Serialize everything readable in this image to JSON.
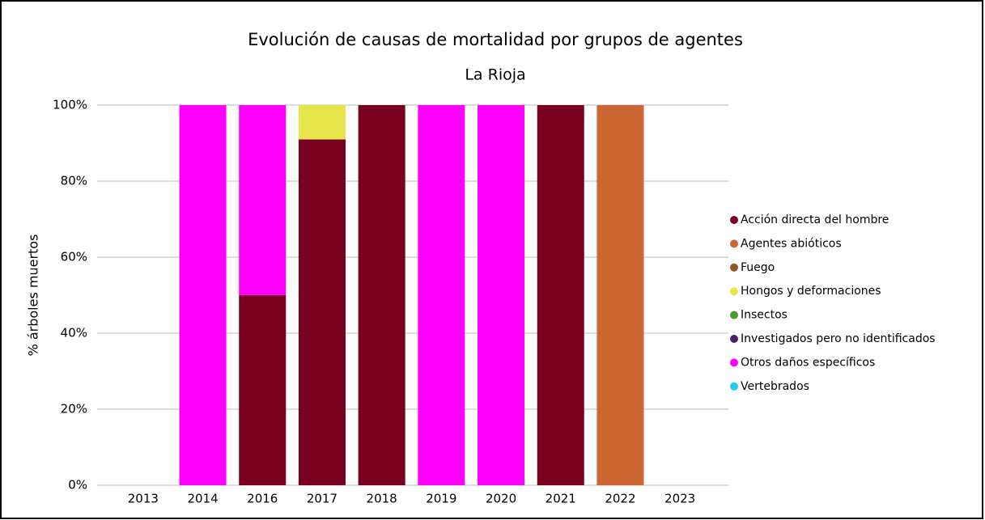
{
  "chart_data": {
    "type": "stacked_bar",
    "title": "Evolución de causas de mortalidad por grupos de agentes",
    "subtitle": "La Rioja",
    "y_label": "% árboles muertos",
    "categories": [
      "2013",
      "2014",
      "2016",
      "2017",
      "2018",
      "2019",
      "2020",
      "2021",
      "2022",
      "2023"
    ],
    "series": [
      {
        "name": "Acción directa del hombre",
        "color": "#7a0020",
        "values": [
          0,
          0,
          50,
          91,
          100,
          0,
          0,
          100,
          0,
          0
        ]
      },
      {
        "name": "Agentes abióticos",
        "color": "#cc6633",
        "values": [
          0,
          0,
          0,
          0,
          0,
          0,
          0,
          0,
          100,
          0
        ]
      },
      {
        "name": "Fuego",
        "color": "#8b5a2b",
        "values": [
          0,
          0,
          0,
          0,
          0,
          0,
          0,
          0,
          0,
          0
        ]
      },
      {
        "name": "Hongos y deformaciones",
        "color": "#e6e64c",
        "values": [
          0,
          0,
          0,
          9,
          0,
          0,
          0,
          0,
          0,
          0
        ]
      },
      {
        "name": "Insectos",
        "color": "#4c9a2a",
        "values": [
          0,
          0,
          0,
          0,
          0,
          0,
          0,
          0,
          0,
          0
        ]
      },
      {
        "name": "Investigados pero no identificados",
        "color": "#4b1e6e",
        "values": [
          0,
          0,
          0,
          0,
          0,
          0,
          0,
          0,
          0,
          0
        ]
      },
      {
        "name": "Otros daños específicos",
        "color": "#ff00ff",
        "values": [
          0,
          100,
          50,
          0,
          0,
          100,
          100,
          0,
          0,
          0
        ]
      },
      {
        "name": "Vertebrados",
        "color": "#22ccee",
        "values": [
          0,
          0,
          0,
          0,
          0,
          0,
          0,
          0,
          0,
          0
        ]
      }
    ],
    "ylim": [
      0,
      100
    ],
    "yticks": [
      {
        "value": 0,
        "label": "0%"
      },
      {
        "value": 20,
        "label": "20%"
      },
      {
        "value": 40,
        "label": "40%"
      },
      {
        "value": 60,
        "label": "60%"
      },
      {
        "value": 80,
        "label": "80%"
      },
      {
        "value": 100,
        "label": "100%"
      }
    ],
    "grid": true,
    "legend": "right"
  }
}
